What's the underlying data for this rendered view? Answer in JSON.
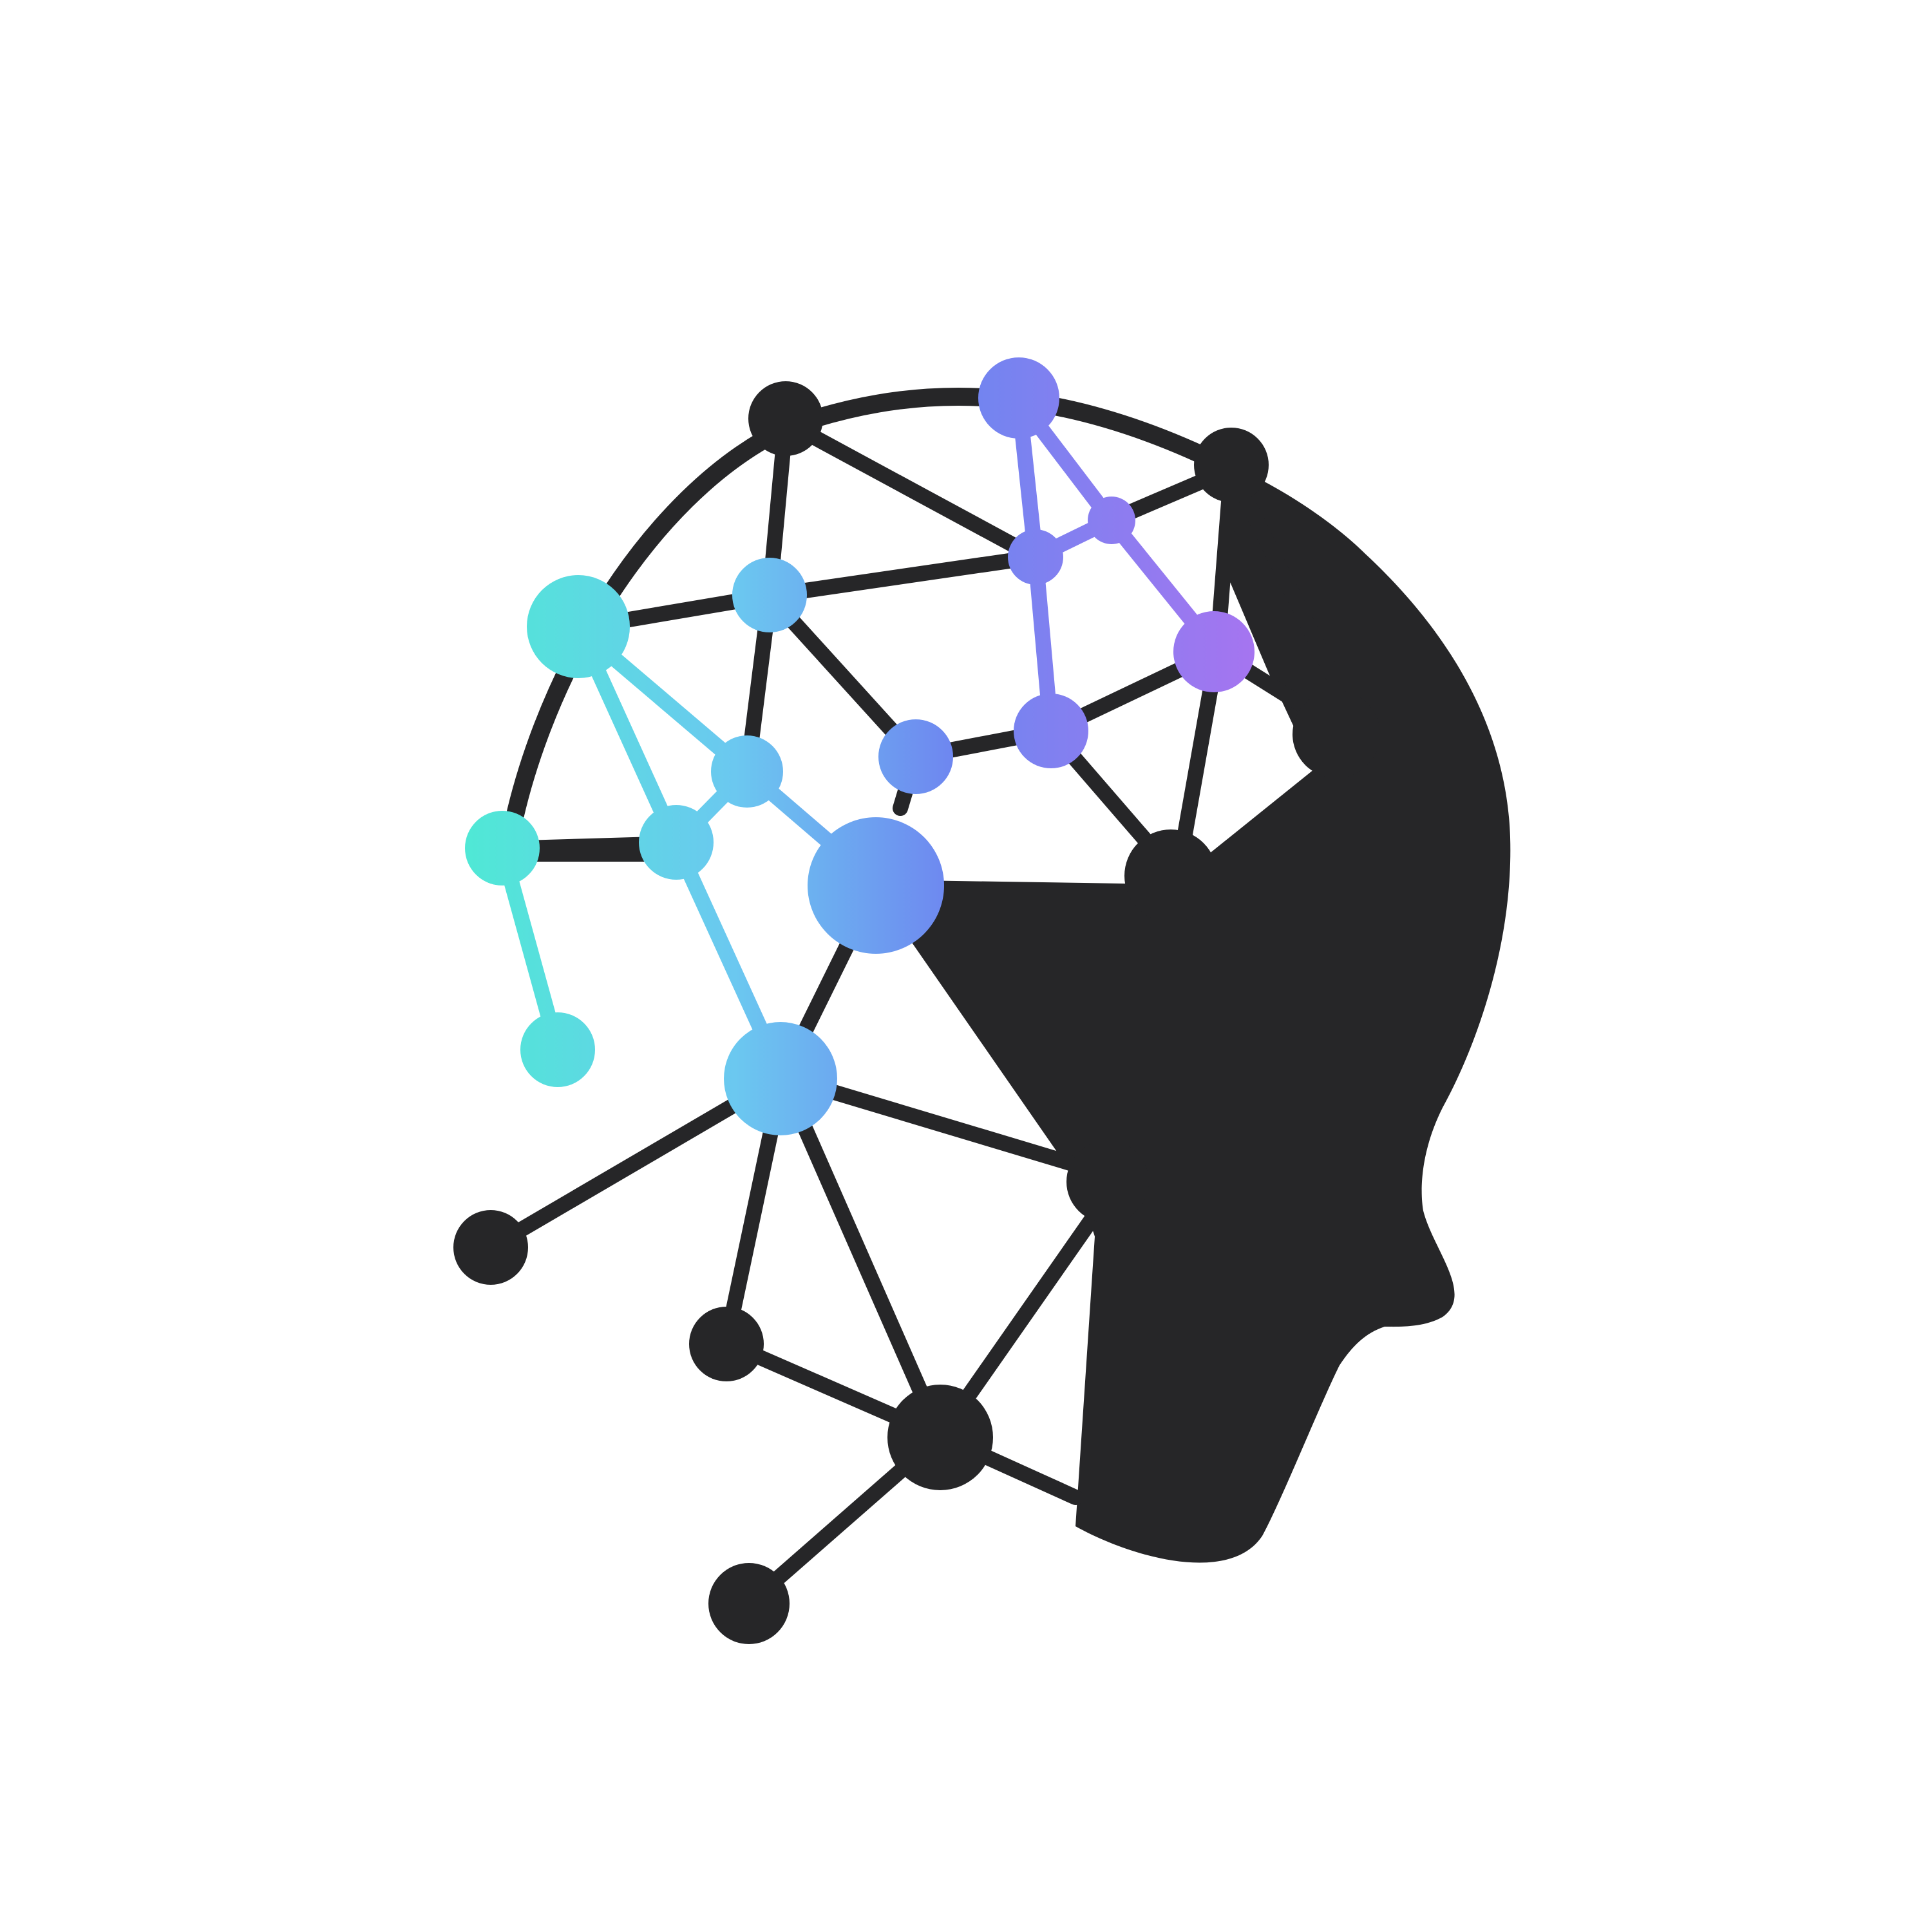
{
  "logo": {
    "subject": "ai-head-neural-network",
    "colors": {
      "background": "#ffffff",
      "ink": "#262628",
      "teal": "#4EEAD4",
      "cyan": "#6BD3EE",
      "blue": "#6E9BF0",
      "indigo": "#6F7CF0",
      "violet": "#8A78F0",
      "purple": "#A374F0"
    }
  }
}
